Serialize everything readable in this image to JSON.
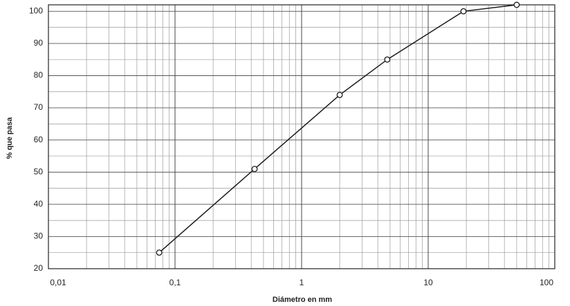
{
  "chart_data": {
    "type": "line",
    "x_label": "Diámetro en mm",
    "y_label": "% que pasa",
    "x": [
      0.075,
      0.425,
      2,
      4.75,
      19,
      50
    ],
    "values": [
      25,
      51,
      74,
      85,
      100,
      102
    ],
    "color": "#1a1a1a",
    "xscale": "log",
    "xlim": [
      0.01,
      100
    ],
    "xticks": [
      {
        "value": 0.01,
        "label": "0,01"
      },
      {
        "value": 0.1,
        "label": "0,1"
      },
      1,
      10,
      100
    ],
    "ylim": [
      20,
      102
    ],
    "yticks": [
      20,
      30,
      40,
      50,
      60,
      70,
      80,
      90,
      100
    ],
    "grid": true,
    "minor_grid": true
  }
}
